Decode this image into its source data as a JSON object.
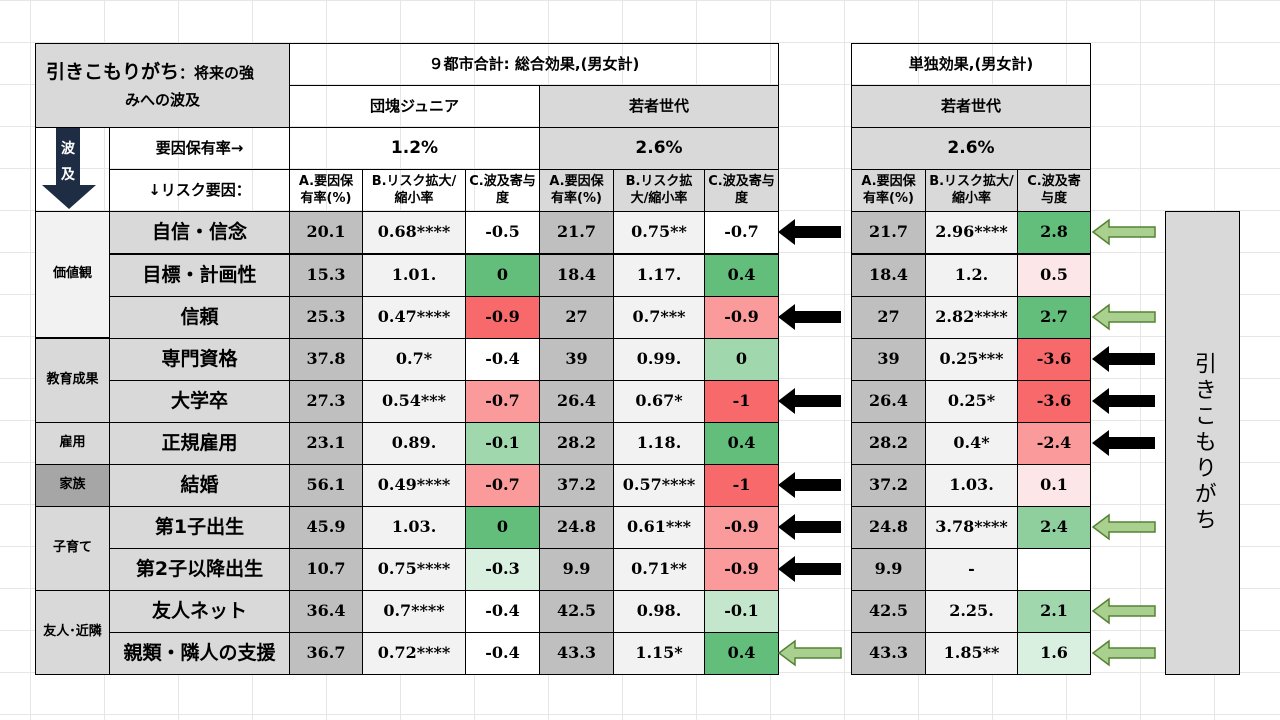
{
  "title": {
    "line1": "引きこもりがち",
    "line1b": "：将来の強",
    "line2": "みへの波及"
  },
  "propagation_label": [
    "波",
    "及"
  ],
  "header": {
    "total_effect": "９都市合計: 総合効果,(男女計)",
    "single_effect": "単独効果,(男女計)",
    "group_dankai": "団塊ジュニア",
    "group_young": "若者世代",
    "group_young_single": "若者世代",
    "hold_rate_label": "要因保有率→",
    "hold_dankai": "1.2%",
    "hold_young": "2.6%",
    "hold_young_single": "2.6%",
    "risk_factor_label": "↓リスク要因：",
    "col_a": "A.要因保有率(%)",
    "col_b1": "B.リスク拡大/縮小率",
    "col_b2": "B.リスク拡大/縮小率",
    "col_c": "C.波及寄与度"
  },
  "categories": [
    "価値観",
    "教育成果",
    "雇用",
    "家族",
    "子育て",
    "友人･近隣"
  ],
  "rows": [
    {
      "name": "自信・信念",
      "a1": "20.1",
      "b1": "0.68****",
      "c1": "-0.5",
      "a2": "21.7",
      "b2": "0.75**",
      "c2": "-0.7",
      "a3": "21.7",
      "b3": "2.96****",
      "c3": "2.8"
    },
    {
      "name": "目標・計画性",
      "a1": "15.3",
      "b1": "1.01.",
      "c1": "0",
      "a2": "18.4",
      "b2": "1.17.",
      "c2": "0.4",
      "a3": "18.4",
      "b3": "1.2.",
      "c3": "0.5"
    },
    {
      "name": "信頼",
      "a1": "25.3",
      "b1": "0.47****",
      "c1": "-0.9",
      "a2": "27",
      "b2": "0.7***",
      "c2": "-0.9",
      "a3": "27",
      "b3": "2.82****",
      "c3": "2.7"
    },
    {
      "name": "専門資格",
      "a1": "37.8",
      "b1": "0.7*",
      "c1": "-0.4",
      "a2": "39",
      "b2": "0.99.",
      "c2": "0",
      "a3": "39",
      "b3": "0.25***",
      "c3": "-3.6"
    },
    {
      "name": "大学卒",
      "a1": "27.3",
      "b1": "0.54***",
      "c1": "-0.7",
      "a2": "26.4",
      "b2": "0.67*",
      "c2": "-1",
      "a3": "26.4",
      "b3": "0.25*",
      "c3": "-3.6"
    },
    {
      "name": "正規雇用",
      "a1": "23.1",
      "b1": "0.89.",
      "c1": "-0.1",
      "a2": "28.2",
      "b2": "1.18.",
      "c2": "0.4",
      "a3": "28.2",
      "b3": "0.4*",
      "c3": "-2.4"
    },
    {
      "name": "結婚",
      "a1": "56.1",
      "b1": "0.49****",
      "c1": "-0.7",
      "a2": "37.2",
      "b2": "0.57****",
      "c2": "-1",
      "a3": "37.2",
      "b3": "1.03.",
      "c3": "0.1"
    },
    {
      "name": "第1子出生",
      "a1": "45.9",
      "b1": "1.03.",
      "c1": "0",
      "a2": "24.8",
      "b2": "0.61***",
      "c2": "-0.9",
      "a3": "24.8",
      "b3": "3.78****",
      "c3": "2.4"
    },
    {
      "name": "第2子以降出生",
      "a1": "10.7",
      "b1": "0.75****",
      "c1": "-0.3",
      "a2": "9.9",
      "b2": "0.71**",
      "c2": "-0.9",
      "a3": "9.9",
      "b3": "-",
      "c3": ""
    },
    {
      "name": "友人ネット",
      "a1": "36.4",
      "b1": "0.7****",
      "c1": "-0.4",
      "a2": "42.5",
      "b2": "0.98.",
      "c2": "-0.1",
      "a3": "42.5",
      "b3": "2.25.",
      "c3": "2.1"
    },
    {
      "name": "親類・隣人の支援",
      "a1": "36.7",
      "b1": "0.72****",
      "c1": "-0.4",
      "a2": "43.3",
      "b2": "1.15*",
      "c2": "0.4",
      "a3": "43.3",
      "b3": "1.85**",
      "c3": "1.6"
    }
  ],
  "cell_colors": {
    "c1": [
      "#ffffff",
      "#63be7b",
      "#f8696b",
      "#ffffff",
      "#fa9a9b",
      "#a0d7ad",
      "#fa9a9b",
      "#63be7b",
      "#d9efdf",
      "#ffffff",
      "#ffffff"
    ],
    "c2": [
      "#ffffff",
      "#63be7b",
      "#fa9a9b",
      "#a0d7ad",
      "#f8696b",
      "#63be7b",
      "#f8696b",
      "#fa9a9b",
      "#fa9a9b",
      "#c3e6cc",
      "#63be7b"
    ],
    "c3": [
      "#63be7b",
      "#fde6e7",
      "#63be7b",
      "#f8696b",
      "#f8696b",
      "#fa9a9b",
      "#fde6e7",
      "#8fcf9e",
      "#ffffff",
      "#a0d7ad",
      "#d9efdf"
    ]
  },
  "arrows_mid": [
    "black",
    "none",
    "black",
    "none",
    "black",
    "none",
    "black",
    "black",
    "black",
    "none",
    "green"
  ],
  "arrows_right": [
    "green",
    "none",
    "green",
    "black",
    "black",
    "black",
    "none",
    "green",
    "none",
    "green",
    "green"
  ],
  "right_label": "引きこもりがち",
  "colors": {
    "negative_arrow": "#000000",
    "positive_arrow": "#a9d08e",
    "positive_arrow_border": "#548235"
  }
}
